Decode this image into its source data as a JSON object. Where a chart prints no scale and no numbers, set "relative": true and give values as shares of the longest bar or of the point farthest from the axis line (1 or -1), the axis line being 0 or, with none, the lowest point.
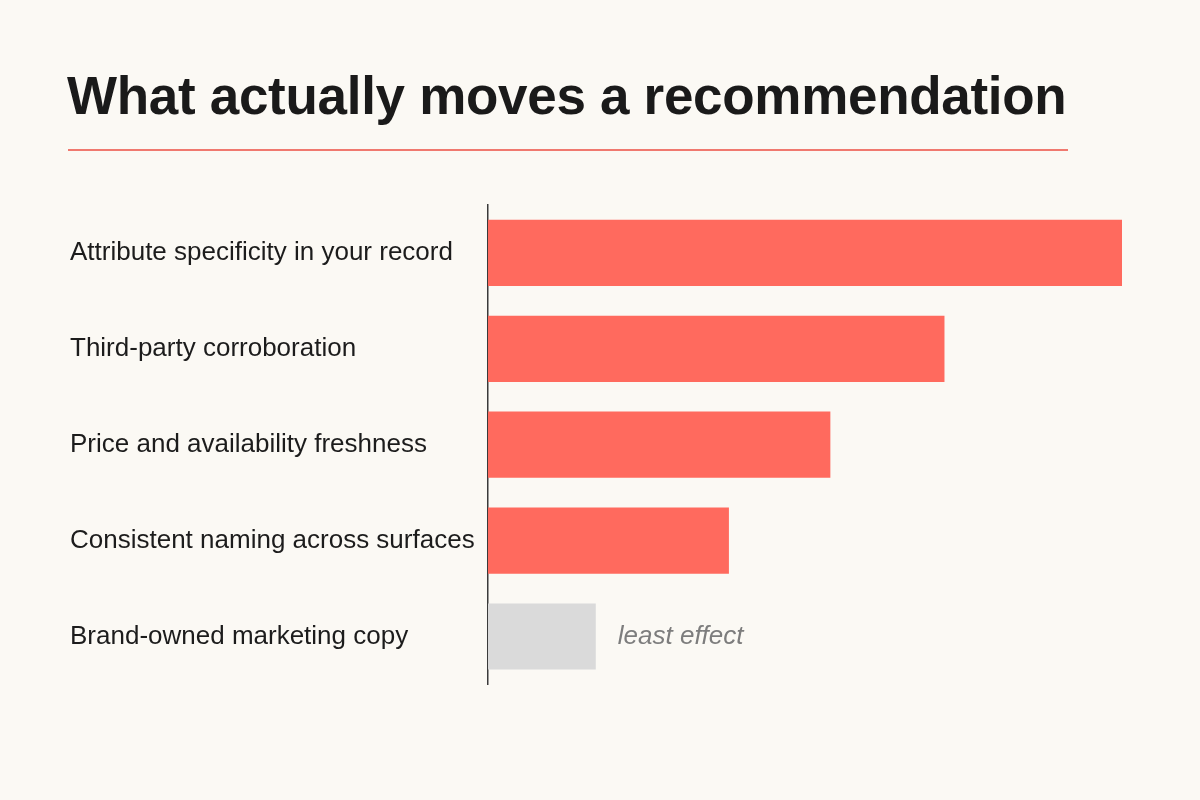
{
  "chart_data": {
    "type": "bar",
    "orientation": "horizontal",
    "relative": true,
    "title": "What actually moves a recommendation",
    "categories": [
      "Attribute specificity in your record",
      "Third-party corroboration",
      "Price and availability freshness",
      "Consistent naming across surfaces",
      "Brand-owned marketing copy"
    ],
    "values": [
      1,
      0.72,
      0.54,
      0.38,
      0.17
    ],
    "colors": [
      "#ff6a5e",
      "#ff6a5e",
      "#ff6a5e",
      "#ff6a5e",
      "#dadada"
    ],
    "annotations": [
      {
        "text": "least effect",
        "x": 0.17,
        "y": "Brand-owned marketing copy"
      }
    ],
    "grid": false,
    "legend": false
  }
}
